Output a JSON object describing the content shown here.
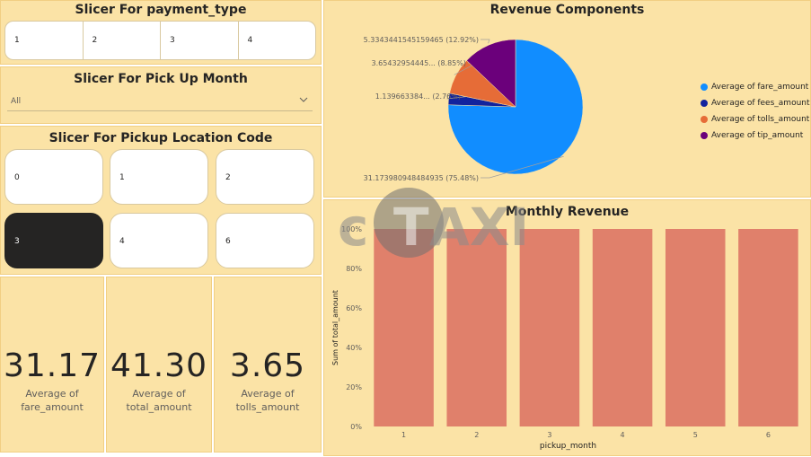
{
  "payment_slicer": {
    "title": "Slicer For payment_type",
    "options": [
      "1",
      "2",
      "3",
      "4"
    ]
  },
  "month_slicer": {
    "title": "Slicer For Pick Up Month",
    "selected": "All"
  },
  "location_slicer": {
    "title": "Slicer For Pickup Location Code",
    "options": [
      "0",
      "1",
      "2",
      "3",
      "4",
      "6"
    ],
    "selected": "3"
  },
  "cards": [
    {
      "value": "31.17",
      "label_line1": "Average of",
      "label_line2": "fare_amount"
    },
    {
      "value": "41.30",
      "label_line1": "Average of",
      "label_line2": "total_amount"
    },
    {
      "value": "3.65",
      "label_line1": "Average of",
      "label_line2": "tolls_amount"
    }
  ],
  "watermark": {
    "letters_left": "c",
    "letters_right": "AXI",
    "center": "T"
  },
  "colors": {
    "panel_bg": "#fbe3a6",
    "fare": "#118dff",
    "fees": "#12239e",
    "tolls": "#e66c37",
    "tip": "#6b007b",
    "bar": "#e0806b",
    "selected_tile": "#252423"
  },
  "chart_data": [
    {
      "type": "pie",
      "title": "Revenue Components",
      "slices": [
        {
          "name": "Average of fare_amount",
          "value": 31.173980948484935,
          "percent": 75.48,
          "label": "31.173980948484935 (75.48%)"
        },
        {
          "name": "Average of fees_amount",
          "value": 1.139663384,
          "percent": 2.76,
          "label": "1.139663384... (2.76%)"
        },
        {
          "name": "Average of tolls_amount",
          "value": 3.65432954445,
          "percent": 8.85,
          "label": "3.65432954445... (8.85%)"
        },
        {
          "name": "Average of tip_amount",
          "value": 5.3343441545159465,
          "percent": 12.92,
          "label": "5.3343441545159465 (12.92%)"
        }
      ],
      "legend": "right"
    },
    {
      "type": "bar",
      "title": "Monthly Revenue",
      "xlabel": "pickup_month",
      "ylabel": "Sum of total_amount",
      "categories": [
        "1",
        "2",
        "3",
        "4",
        "5",
        "6"
      ],
      "values": [
        100,
        100,
        100,
        100,
        100,
        100
      ],
      "ylim": [
        0,
        100
      ],
      "yticks": [
        "0%",
        "20%",
        "40%",
        "60%",
        "80%",
        "100%"
      ]
    }
  ]
}
